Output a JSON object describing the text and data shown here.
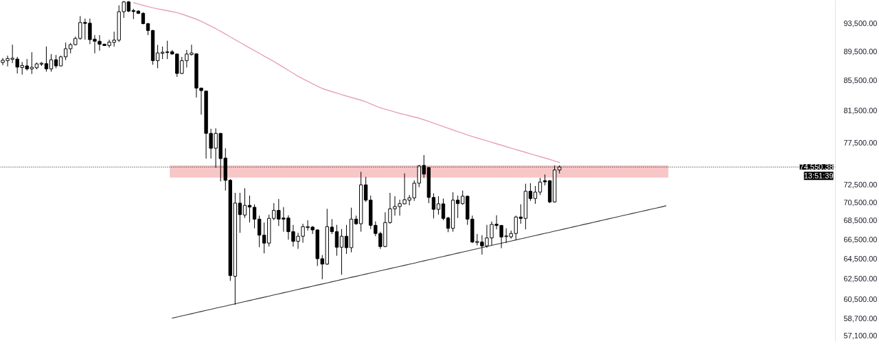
{
  "chart_data": {
    "type": "candlestick",
    "categories": [
      null,
      null,
      null,
      null,
      null,
      null,
      null,
      null,
      null,
      null,
      null,
      null,
      null,
      null,
      null,
      null,
      null,
      null,
      null,
      null,
      null,
      null,
      null,
      null,
      null,
      null,
      null,
      null,
      null,
      null,
      null,
      null,
      null,
      null,
      null,
      null,
      null,
      null,
      null,
      null,
      null,
      null,
      null,
      null,
      null,
      null,
      null,
      null,
      null,
      null,
      null,
      null,
      null,
      null,
      null,
      null,
      null,
      null,
      null,
      null,
      null,
      null,
      null,
      null,
      null,
      null,
      null,
      null,
      null,
      null,
      null,
      null,
      null,
      null,
      null,
      null,
      null,
      null,
      null,
      null,
      null,
      null,
      null,
      null,
      null,
      null,
      null,
      null,
      null,
      null,
      null,
      null,
      null,
      null,
      null,
      null,
      null,
      null,
      null,
      null,
      null,
      null,
      null,
      null,
      null,
      null,
      null,
      null,
      null,
      null,
      null,
      null,
      null,
      null,
      null,
      null,
      null,
      null,
      null,
      null,
      null,
      null,
      null,
      null,
      null,
      null,
      null,
      null,
      null,
      null,
      null,
      null,
      null,
      null,
      null,
      null,
      null,
      null
    ],
    "ohlc": [
      [
        87930,
        88570,
        87550,
        88250
      ],
      [
        88190,
        88890,
        87390,
        88480
      ],
      [
        88380,
        90440,
        87860,
        88530
      ],
      [
        88410,
        88720,
        86420,
        87290
      ],
      [
        87240,
        88000,
        86260,
        87520
      ],
      [
        87460,
        88410,
        86820,
        87050
      ],
      [
        87050,
        89370,
        86350,
        87270
      ],
      [
        87200,
        87930,
        86980,
        87740
      ],
      [
        87700,
        88000,
        87460,
        87830
      ],
      [
        87770,
        90180,
        86670,
        87050
      ],
      [
        87050,
        89110,
        86670,
        88310
      ],
      [
        88310,
        88980,
        87140,
        87460
      ],
      [
        87460,
        88890,
        87390,
        88720
      ],
      [
        88720,
        90740,
        88250,
        89860
      ],
      [
        89860,
        90670,
        89210,
        90440
      ],
      [
        90440,
        91600,
        90340,
        91330
      ],
      [
        91330,
        94620,
        91160,
        93660
      ],
      [
        93660,
        94240,
        91160,
        93530
      ],
      [
        93560,
        94240,
        90510,
        91160
      ],
      [
        91230,
        91820,
        89210,
        90930
      ],
      [
        90930,
        91820,
        89590,
        90510
      ],
      [
        90510,
        90570,
        90250,
        90320
      ],
      [
        90320,
        91160,
        90020,
        90810
      ],
      [
        90770,
        92320,
        90180,
        91100
      ],
      [
        91100,
        96240,
        90830,
        95270
      ],
      [
        95270,
        96900,
        94350,
        96760
      ],
      [
        96760,
        96900,
        95200,
        95370
      ],
      [
        95450,
        95710,
        94170,
        95300
      ],
      [
        95370,
        95480,
        94930,
        95030
      ],
      [
        95030,
        95200,
        93400,
        93500
      ],
      [
        93500,
        93600,
        91820,
        92490
      ],
      [
        92490,
        92590,
        87620,
        88190
      ],
      [
        88190,
        90410,
        87140,
        89270
      ],
      [
        89210,
        90180,
        88410,
        89370
      ],
      [
        89320,
        91000,
        88410,
        89420
      ],
      [
        89440,
        89690,
        89050,
        89110
      ],
      [
        89110,
        89210,
        85950,
        86420
      ],
      [
        86420,
        88720,
        86350,
        88190
      ],
      [
        88190,
        89690,
        87240,
        89110
      ],
      [
        89050,
        90440,
        88890,
        89270
      ],
      [
        89150,
        89210,
        83200,
        84450
      ],
      [
        84450,
        84500,
        80980,
        84110
      ],
      [
        84050,
        84110,
        75550,
        78620
      ],
      [
        78620,
        79190,
        75550,
        76790
      ],
      [
        76790,
        79250,
        74470,
        78620
      ],
      [
        78620,
        78670,
        72880,
        75550
      ],
      [
        75610,
        76790,
        71830,
        73000
      ],
      [
        73000,
        73140,
        62280,
        62800
      ],
      [
        62730,
        71570,
        59970,
        70420
      ],
      [
        70420,
        71570,
        67190,
        69150
      ],
      [
        69110,
        72090,
        68780,
        70170
      ],
      [
        70170,
        71260,
        68290,
        69980
      ],
      [
        69960,
        70290,
        67670,
        68660
      ],
      [
        68660,
        69040,
        65680,
        66940
      ],
      [
        66940,
        68290,
        65040,
        66110
      ],
      [
        66110,
        69150,
        65750,
        68740
      ],
      [
        68740,
        70420,
        68540,
        69610
      ],
      [
        69610,
        70880,
        67920,
        68660
      ],
      [
        68780,
        69980,
        67310,
        68660
      ],
      [
        68780,
        69080,
        66470,
        67310
      ],
      [
        67310,
        68040,
        65750,
        66290
      ],
      [
        66290,
        67190,
        65510,
        66830
      ],
      [
        66830,
        68160,
        66150,
        67850
      ],
      [
        67750,
        68540,
        67430,
        67850
      ],
      [
        67800,
        67920,
        67070,
        67500
      ],
      [
        67500,
        67560,
        63760,
        64500
      ],
      [
        64500,
        64870,
        62440,
        63950
      ],
      [
        63950,
        69790,
        63880,
        67850
      ],
      [
        67800,
        68660,
        67070,
        67310
      ],
      [
        67310,
        68040,
        64800,
        65680
      ],
      [
        65680,
        67600,
        62890,
        66830
      ],
      [
        66830,
        68040,
        64990,
        65630
      ],
      [
        65630,
        69910,
        65150,
        68660
      ],
      [
        68660,
        69040,
        68040,
        68160
      ],
      [
        68160,
        73990,
        67310,
        72480
      ],
      [
        72480,
        73400,
        70550,
        70750
      ],
      [
        70750,
        71260,
        67600,
        67990
      ],
      [
        67990,
        68410,
        66830,
        67120
      ],
      [
        67120,
        67310,
        65510,
        65750
      ],
      [
        65750,
        69410,
        65680,
        68290
      ],
      [
        68290,
        71570,
        68160,
        69790
      ],
      [
        69790,
        71190,
        69040,
        70040
      ],
      [
        70040,
        70800,
        69040,
        70360
      ],
      [
        70340,
        73800,
        70290,
        70800
      ],
      [
        70750,
        71320,
        70170,
        71010
      ],
      [
        71010,
        73000,
        70670,
        72670
      ],
      [
        72670,
        74800,
        72220,
        74680
      ],
      [
        74740,
        75970,
        73270,
        73720
      ],
      [
        74470,
        74600,
        70420,
        71050
      ],
      [
        71050,
        71520,
        68740,
        69730
      ],
      [
        69730,
        71190,
        69150,
        70340
      ],
      [
        70340,
        70930,
        68540,
        68740
      ],
      [
        68780,
        68910,
        67260,
        67670
      ],
      [
        67670,
        71630,
        67310,
        70750
      ],
      [
        70750,
        71260,
        68780,
        70360
      ],
      [
        70360,
        71830,
        70240,
        71190
      ],
      [
        71190,
        71260,
        68040,
        68660
      ],
      [
        68660,
        69040,
        66110,
        66220
      ],
      [
        66180,
        67070,
        65870,
        66270
      ],
      [
        66220,
        66940,
        64920,
        65820
      ],
      [
        65820,
        68040,
        65630,
        66650
      ],
      [
        66650,
        68410,
        65870,
        68090
      ],
      [
        68110,
        69080,
        67560,
        67970
      ],
      [
        67970,
        68040,
        65580,
        66750
      ],
      [
        66790,
        67670,
        66110,
        66860
      ],
      [
        66770,
        67430,
        66580,
        67120
      ],
      [
        67120,
        69040,
        66470,
        68890
      ],
      [
        68890,
        70290,
        68160,
        68740
      ],
      [
        68740,
        72610,
        67560,
        71750
      ],
      [
        71750,
        72670,
        70670,
        70930
      ],
      [
        70930,
        72350,
        70340,
        71650
      ],
      [
        71650,
        73270,
        71320,
        72800
      ],
      [
        72960,
        73670,
        72410,
        72820
      ],
      [
        72960,
        73000,
        70420,
        70550
      ],
      [
        70550,
        74740,
        70470,
        74200
      ],
      [
        74200,
        74740,
        73800,
        74550
      ],
      null,
      null,
      null,
      null,
      null,
      null,
      null,
      null,
      null,
      null,
      null,
      null,
      null,
      null,
      null,
      null,
      null,
      null,
      null,
      null,
      null,
      null
    ],
    "colors": [
      "#ffffff",
      "#ffffff",
      "#ffffff",
      "#000000",
      "#ffffff",
      "#000000",
      "#ffffff",
      "#ffffff",
      "#ffffff",
      "#000000",
      "#ffffff",
      "#000000",
      "#ffffff",
      "#ffffff",
      "#ffffff",
      "#ffffff",
      "#ffffff",
      "#000000",
      "#000000",
      "#000000",
      "#000000",
      "#000000",
      "#ffffff",
      "#ffffff",
      "#ffffff",
      "#ffffff",
      "#000000",
      "#000000",
      "#000000",
      "#000000",
      "#000000",
      "#000000",
      "#ffffff",
      "#ffffff",
      "#ffffff",
      "#000000",
      "#000000",
      "#ffffff",
      "#ffffff",
      "#ffffff",
      "#000000",
      "#000000",
      "#000000",
      "#000000",
      "#ffffff",
      "#000000",
      "#000000",
      "#000000",
      "#ffffff",
      "#000000",
      "#ffffff",
      "#000000",
      "#000000",
      "#000000",
      "#000000",
      "#ffffff",
      "#ffffff",
      "#000000",
      "#000000",
      "#000000",
      "#000000",
      "#ffffff",
      "#ffffff",
      "#ffffff",
      "#000000",
      "#000000",
      "#000000",
      "#ffffff",
      "#000000",
      "#000000",
      "#ffffff",
      "#000000",
      "#ffffff",
      "#000000",
      "#ffffff",
      "#000000",
      "#000000",
      "#000000",
      "#000000",
      "#ffffff",
      "#ffffff",
      "#ffffff",
      "#ffffff",
      "#ffffff",
      "#ffffff",
      "#ffffff",
      "#ffffff",
      "#000000",
      "#000000",
      "#000000",
      "#ffffff",
      "#000000",
      "#000000",
      "#ffffff",
      "#000000",
      "#ffffff",
      "#000000",
      "#000000",
      "#ffffff",
      "#000000",
      "#ffffff",
      "#ffffff",
      "#000000",
      "#000000",
      "#ffffff",
      "#ffffff",
      "#ffffff",
      "#000000",
      "#ffffff",
      "#000000",
      "#ffffff",
      "#ffffff",
      "#000000",
      "#000000",
      "#ffffff",
      "#ffffff",
      null,
      null,
      null,
      null,
      null,
      null,
      null,
      null,
      null,
      null,
      null,
      null,
      null,
      null,
      null,
      null,
      null,
      null,
      null,
      null,
      null,
      null
    ],
    "series": [
      {
        "type": "line",
        "color": "#e8a0b4",
        "values": [
          null,
          null,
          null,
          null,
          null,
          null,
          null,
          null,
          null,
          null,
          null,
          null,
          null,
          null,
          null,
          null,
          null,
          null,
          null,
          null,
          null,
          null,
          null,
          null,
          null,
          null,
          null,
          96630,
          96430,
          96240,
          96050,
          95860,
          95710,
          95570,
          95430,
          95280,
          95140,
          94920,
          94660,
          94410,
          94150,
          93840,
          93480,
          93130,
          92760,
          92360,
          91960,
          91560,
          91160,
          90770,
          90370,
          89980,
          89580,
          89210,
          88820,
          88440,
          88060,
          87660,
          87260,
          86850,
          86450,
          86040,
          85680,
          85360,
          85030,
          84700,
          84390,
          84180,
          83980,
          83780,
          83580,
          83390,
          83210,
          83030,
          82850,
          82630,
          82370,
          82100,
          81850,
          81680,
          81500,
          81320,
          81140,
          80990,
          80830,
          80680,
          80520,
          80330,
          80120,
          79900,
          79680,
          79470,
          79250,
          79050,
          78830,
          78630,
          78420,
          78230,
          78050,
          77870,
          77700,
          77520,
          77340,
          77170,
          76980,
          76810,
          76640,
          76460,
          76300,
          76120,
          75960,
          75780,
          75620,
          75450,
          75260,
          75070,
          null,
          null,
          null,
          null,
          null,
          null,
          null,
          null,
          null,
          null,
          null,
          null,
          null,
          null,
          null,
          null,
          null,
          null,
          null,
          null,
          null,
          null
        ]
      },
      {
        "type": "line",
        "color": "#333333",
        "values": [
          null,
          null,
          null,
          null,
          null,
          null,
          null,
          null,
          null,
          null,
          null,
          null,
          null,
          null,
          null,
          null,
          null,
          null,
          null,
          null,
          null,
          null,
          null,
          null,
          null,
          null,
          null,
          null,
          null,
          null,
          null,
          null,
          null,
          null,
          null,
          58720,
          58820,
          58930,
          59030,
          59130,
          59240,
          59340,
          59440,
          59540,
          59650,
          59750,
          59850,
          59960,
          60060,
          60170,
          60270,
          60380,
          60480,
          60590,
          60690,
          60800,
          60910,
          61010,
          61120,
          61230,
          61330,
          61440,
          61550,
          61650,
          61760,
          61870,
          61970,
          62080,
          62190,
          62300,
          62410,
          62520,
          62630,
          62730,
          62840,
          62950,
          63060,
          63170,
          63280,
          63390,
          63500,
          63610,
          63720,
          63830,
          63940,
          64050,
          64170,
          64280,
          64390,
          64500,
          64620,
          64730,
          64840,
          64950,
          65070,
          65180,
          65290,
          65410,
          65520,
          65640,
          65750,
          65870,
          65980,
          66090,
          66210,
          66320,
          66440,
          66560,
          66670,
          66790,
          66900,
          67020,
          67140,
          67250,
          67370,
          67480,
          67600,
          67720,
          67840,
          67960,
          68080,
          68190,
          68310,
          68430,
          68550,
          68670,
          68790,
          68910,
          69030,
          69150,
          69270,
          69390,
          69510,
          69630,
          69750,
          69870,
          69990,
          70120
        ]
      }
    ],
    "log": true,
    "ylim": [
      56600,
      97000
    ],
    "yticks": [
      {
        "value": 57100,
        "label": "57,100.00"
      },
      {
        "value": 58700,
        "label": "58,700.00"
      },
      {
        "value": 60500,
        "label": "60,500.00"
      },
      {
        "value": 62500,
        "label": "62,500.00"
      },
      {
        "value": 64500,
        "label": "64,500.00"
      },
      {
        "value": 66500,
        "label": "66,500.00"
      },
      {
        "value": 68500,
        "label": "68,500.00"
      },
      {
        "value": 70500,
        "label": "70,500.00"
      },
      {
        "value": 72500,
        "label": "72,500.00"
      },
      {
        "value": 77500,
        "label": "77,500.00"
      },
      {
        "value": 81500,
        "label": "81,500.00"
      },
      {
        "value": 85500,
        "label": "85,500.00"
      },
      {
        "value": 89500,
        "label": "89,500.00"
      },
      {
        "value": 93500,
        "label": "93,500.00"
      }
    ],
    "tick_labels": "y",
    "grid": false,
    "bands": [
      {
        "axis": "y",
        "from": 73320,
        "to": 74740,
        "color": "#f7c6c7"
      }
    ],
    "ref_lines": [
      {
        "axis": "y",
        "value": 74550.38,
        "label": "74,550.38",
        "color": "#000000",
        "line_style": "dotted"
      }
    ],
    "annotations": [
      "13:51:39"
    ]
  }
}
